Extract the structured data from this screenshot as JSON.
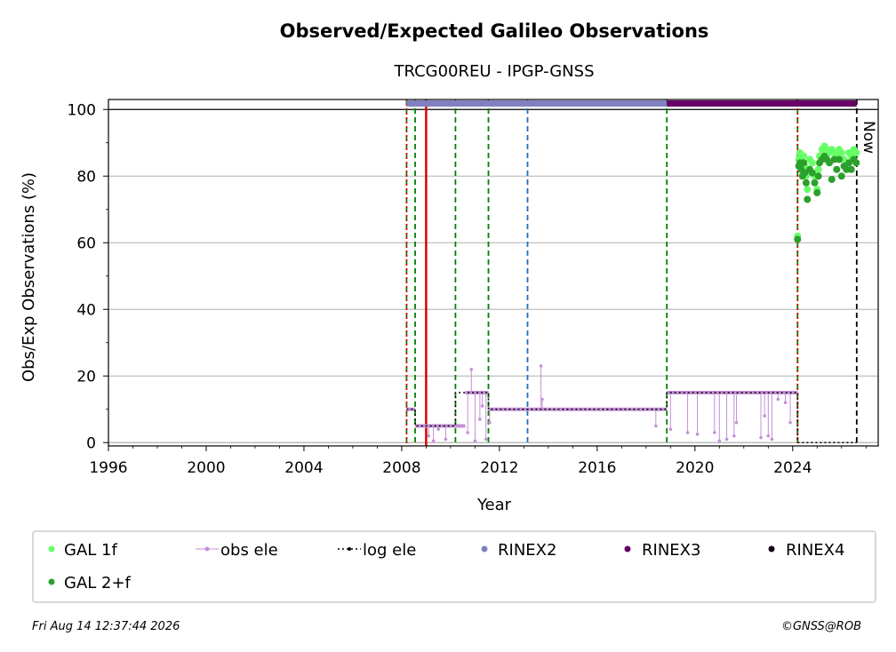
{
  "title": "Observed/Expected Galileo Observations",
  "subtitle": "TRCG00REU - IPGP-GNSS",
  "footer": {
    "timestamp": "Fri Aug 14 12:37:44 2026",
    "copyright": "©GNSS@ROB"
  },
  "now_label": "Now",
  "colors": {
    "gal_1f": "#66ff66",
    "gal_2f": "#2ca02c",
    "obs_ele": "#c48fd6",
    "log_ele": "#000000",
    "rinex2": "#8080c0",
    "rinex3": "#660066",
    "rinex4": "#1a0020",
    "receiver_change": "#008000",
    "antenna_change": "#dd0000",
    "other_change": "#1f6fbf",
    "grid": "#b0b0b0"
  },
  "chart_data": {
    "type": "scatter",
    "title": "Observed/Expected Galileo Observations",
    "subtitle": "TRCG00REU - IPGP-GNSS",
    "xlabel": "Year",
    "ylabel": "Obs/Exp Observations (%)",
    "xlim": [
      1996,
      2027.5
    ],
    "ylim": [
      -1,
      103
    ],
    "xticks": [
      1996,
      2000,
      2004,
      2008,
      2012,
      2016,
      2020,
      2024
    ],
    "yticks": [
      0,
      20,
      40,
      60,
      80,
      100
    ],
    "grid": "horizontal",
    "legend_position": "bottom",
    "legend": [
      "GAL 1f",
      "GAL 2+f",
      "obs ele",
      "log ele",
      "RINEX2",
      "RINEX3",
      "RINEX4"
    ],
    "vertical_lines": [
      {
        "x": 2008.2,
        "color": "green",
        "style": "dashed"
      },
      {
        "x": 2008.2,
        "color": "red",
        "style": "dotted"
      },
      {
        "x": 2008.55,
        "color": "green",
        "style": "dashed"
      },
      {
        "x": 2009.0,
        "color": "red",
        "style": "solid"
      },
      {
        "x": 2010.2,
        "color": "green",
        "style": "dashed"
      },
      {
        "x": 2011.55,
        "color": "green",
        "style": "dashed"
      },
      {
        "x": 2013.15,
        "color": "blue",
        "style": "dashed"
      },
      {
        "x": 2018.85,
        "color": "green",
        "style": "dashed"
      },
      {
        "x": 2024.2,
        "color": "green",
        "style": "dashed"
      },
      {
        "x": 2024.2,
        "color": "red",
        "style": "dotted"
      },
      {
        "x": 2026.62,
        "color": "black",
        "style": "dashed"
      }
    ],
    "rinex_bars": [
      {
        "name": "RINEX2",
        "x_start": 2008.2,
        "x_end": 2018.85,
        "y": 101.8
      },
      {
        "name": "RINEX3",
        "x_start": 2018.85,
        "x_end": 2026.62,
        "y": 101.8
      }
    ],
    "log_ele_steps": [
      {
        "x_start": 2008.2,
        "x_end": 2008.55,
        "y": 10
      },
      {
        "x_start": 2008.55,
        "x_end": 2010.2,
        "y": 5
      },
      {
        "x_start": 2010.2,
        "x_end": 2010.6,
        "y": 15
      },
      {
        "x_start": 2010.6,
        "x_end": 2011.55,
        "y": 15
      },
      {
        "x_start": 2011.55,
        "x_end": 2018.85,
        "y": 10
      },
      {
        "x_start": 2018.85,
        "x_end": 2024.2,
        "y": 15
      },
      {
        "x_start": 2024.2,
        "x_end": 2026.62,
        "y": 0
      }
    ],
    "obs_ele_segments": [
      {
        "x_start": 2008.2,
        "x_end": 2008.55,
        "y": 10
      },
      {
        "x_start": 2008.55,
        "x_end": 2010.6,
        "y": 5
      },
      {
        "x_start": 2010.6,
        "x_end": 2011.55,
        "y": 15
      },
      {
        "x_start": 2011.55,
        "x_end": 2018.85,
        "y": 10
      },
      {
        "x_start": 2018.85,
        "x_end": 2024.2,
        "y": 15
      }
    ],
    "obs_ele_spikes": [
      {
        "x": 2009.1,
        "y": 2
      },
      {
        "x": 2009.3,
        "y": 0.5
      },
      {
        "x": 2009.5,
        "y": 4
      },
      {
        "x": 2009.8,
        "y": 1
      },
      {
        "x": 2010.7,
        "y": 3
      },
      {
        "x": 2010.85,
        "y": 22
      },
      {
        "x": 2011.0,
        "y": 0.5
      },
      {
        "x": 2011.2,
        "y": 7
      },
      {
        "x": 2011.3,
        "y": 11
      },
      {
        "x": 2011.45,
        "y": 1
      },
      {
        "x": 2011.6,
        "y": 6
      },
      {
        "x": 2013.7,
        "y": 23
      },
      {
        "x": 2013.75,
        "y": 13
      },
      {
        "x": 2018.4,
        "y": 5
      },
      {
        "x": 2019.0,
        "y": 4
      },
      {
        "x": 2019.7,
        "y": 3
      },
      {
        "x": 2020.1,
        "y": 2.5
      },
      {
        "x": 2020.8,
        "y": 3
      },
      {
        "x": 2021.0,
        "y": 0.5
      },
      {
        "x": 2021.3,
        "y": 1
      },
      {
        "x": 2021.6,
        "y": 2
      },
      {
        "x": 2021.7,
        "y": 6
      },
      {
        "x": 2022.7,
        "y": 1.5
      },
      {
        "x": 2022.85,
        "y": 8
      },
      {
        "x": 2023.0,
        "y": 2
      },
      {
        "x": 2023.15,
        "y": 1
      },
      {
        "x": 2023.4,
        "y": 13
      },
      {
        "x": 2023.7,
        "y": 12
      },
      {
        "x": 2023.9,
        "y": 6
      }
    ],
    "series": [
      {
        "name": "GAL 1f",
        "points": [
          [
            2024.2,
            62
          ],
          [
            2024.25,
            85
          ],
          [
            2024.3,
            87
          ],
          [
            2024.35,
            86
          ],
          [
            2024.4,
            84
          ],
          [
            2024.45,
            86
          ],
          [
            2024.5,
            83
          ],
          [
            2024.55,
            80
          ],
          [
            2024.6,
            76
          ],
          [
            2024.7,
            85
          ],
          [
            2024.8,
            84
          ],
          [
            2024.9,
            80
          ],
          [
            2025.0,
            76
          ],
          [
            2025.05,
            82
          ],
          [
            2025.1,
            86
          ],
          [
            2025.2,
            88
          ],
          [
            2025.3,
            89
          ],
          [
            2025.4,
            88
          ],
          [
            2025.5,
            87
          ],
          [
            2025.6,
            88
          ],
          [
            2025.7,
            87
          ],
          [
            2025.8,
            86
          ],
          [
            2025.9,
            88
          ],
          [
            2026.0,
            87
          ],
          [
            2026.1,
            85
          ],
          [
            2026.2,
            84
          ],
          [
            2026.3,
            87
          ],
          [
            2026.4,
            86
          ],
          [
            2026.5,
            88
          ],
          [
            2026.6,
            87
          ]
        ]
      },
      {
        "name": "GAL 2+f",
        "points": [
          [
            2024.2,
            61
          ],
          [
            2024.25,
            83
          ],
          [
            2024.3,
            84
          ],
          [
            2024.35,
            82
          ],
          [
            2024.4,
            80
          ],
          [
            2024.45,
            84
          ],
          [
            2024.5,
            81
          ],
          [
            2024.55,
            78
          ],
          [
            2024.6,
            73
          ],
          [
            2024.7,
            82
          ],
          [
            2024.8,
            81
          ],
          [
            2024.9,
            78
          ],
          [
            2025.0,
            75
          ],
          [
            2025.05,
            80
          ],
          [
            2025.1,
            84
          ],
          [
            2025.2,
            85
          ],
          [
            2025.3,
            86
          ],
          [
            2025.4,
            85
          ],
          [
            2025.5,
            84
          ],
          [
            2025.6,
            79
          ],
          [
            2025.7,
            85
          ],
          [
            2025.8,
            82
          ],
          [
            2025.9,
            85
          ],
          [
            2026.0,
            80
          ],
          [
            2026.1,
            83
          ],
          [
            2026.2,
            82
          ],
          [
            2026.3,
            84
          ],
          [
            2026.4,
            82
          ],
          [
            2026.5,
            85
          ],
          [
            2026.6,
            84
          ]
        ]
      }
    ]
  }
}
